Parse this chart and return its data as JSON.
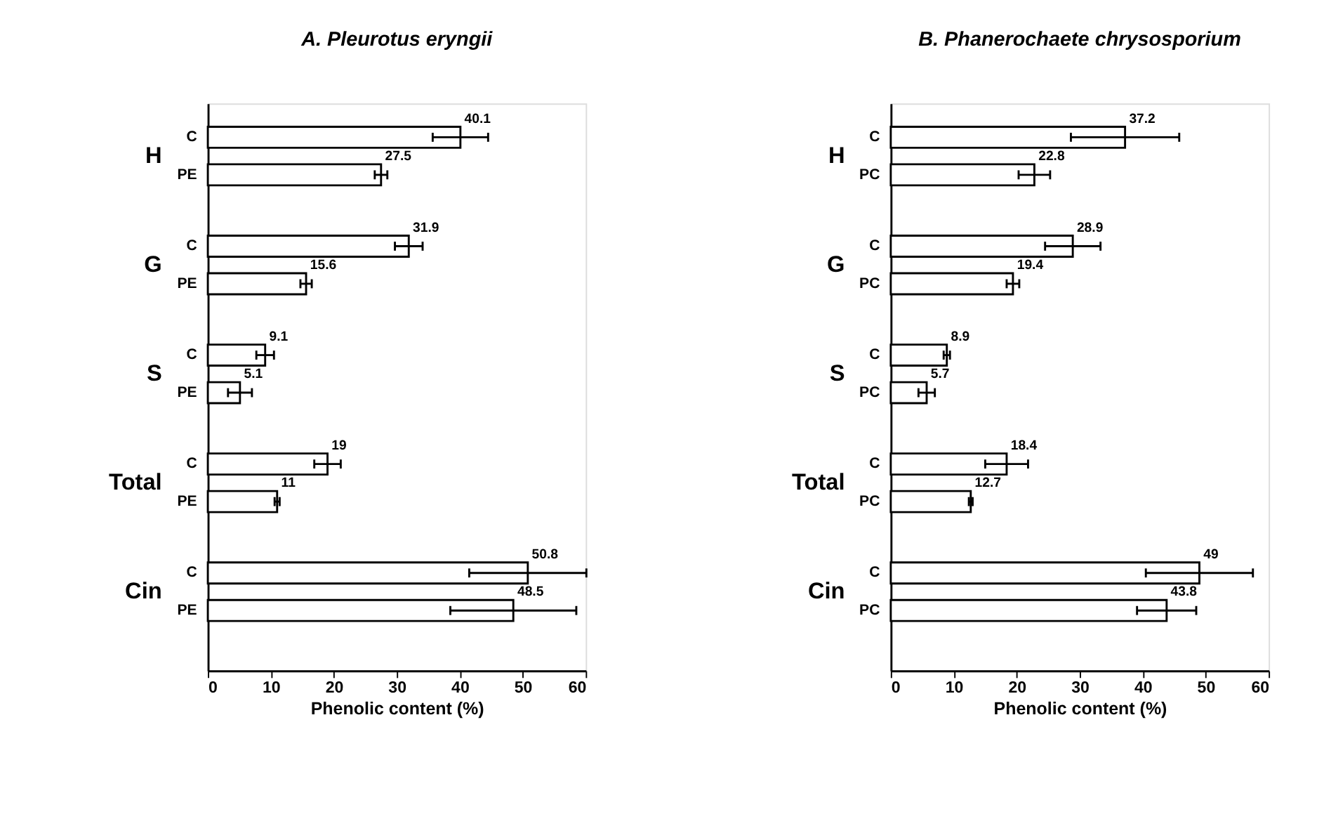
{
  "chart_data": [
    {
      "type": "bar",
      "orientation": "horizontal",
      "title": "A. Pleurotus eryngii",
      "xlabel": "Phenolic content (%)",
      "categories": [
        "C",
        "PE",
        "C",
        "PE",
        "C",
        "PE",
        "C",
        "PE",
        "C",
        "PE"
      ],
      "values": [
        40.1,
        27.5,
        31.9,
        15.6,
        9.1,
        5.1,
        19,
        11,
        50.8,
        48.5
      ],
      "errors": [
        4.4,
        1.0,
        2.2,
        0.9,
        1.4,
        1.9,
        2.1,
        0.4,
        9.3,
        10
      ],
      "color": "#ffffff",
      "data_labels": true,
      "annotations": [
        "H",
        "G",
        "S",
        "Total",
        "Cin"
      ],
      "xlim": [
        0,
        60
      ],
      "xticks": [
        0,
        10,
        20,
        30,
        40,
        50,
        60
      ]
    },
    {
      "type": "bar",
      "orientation": "horizontal",
      "title": "B. Phanerochaete chrysosporium",
      "xlabel": "Phenolic content (%)",
      "categories": [
        "C",
        "PC",
        "C",
        "PC",
        "C",
        "PC",
        "C",
        "PC",
        "C",
        "PC"
      ],
      "values": [
        37.2,
        22.8,
        28.9,
        19.4,
        8.9,
        5.7,
        18.4,
        12.7,
        49,
        43.8
      ],
      "errors": [
        8.6,
        2.5,
        4.4,
        1.0,
        0.5,
        1.3,
        3.4,
        0.3,
        8.5,
        4.7
      ],
      "color": "#ffffff",
      "data_labels": true,
      "annotations": [
        "H",
        "G",
        "S",
        "Total",
        "Cin"
      ],
      "xlim": [
        0,
        60
      ],
      "xticks": [
        0,
        10,
        20,
        30,
        40,
        50,
        60
      ]
    }
  ]
}
